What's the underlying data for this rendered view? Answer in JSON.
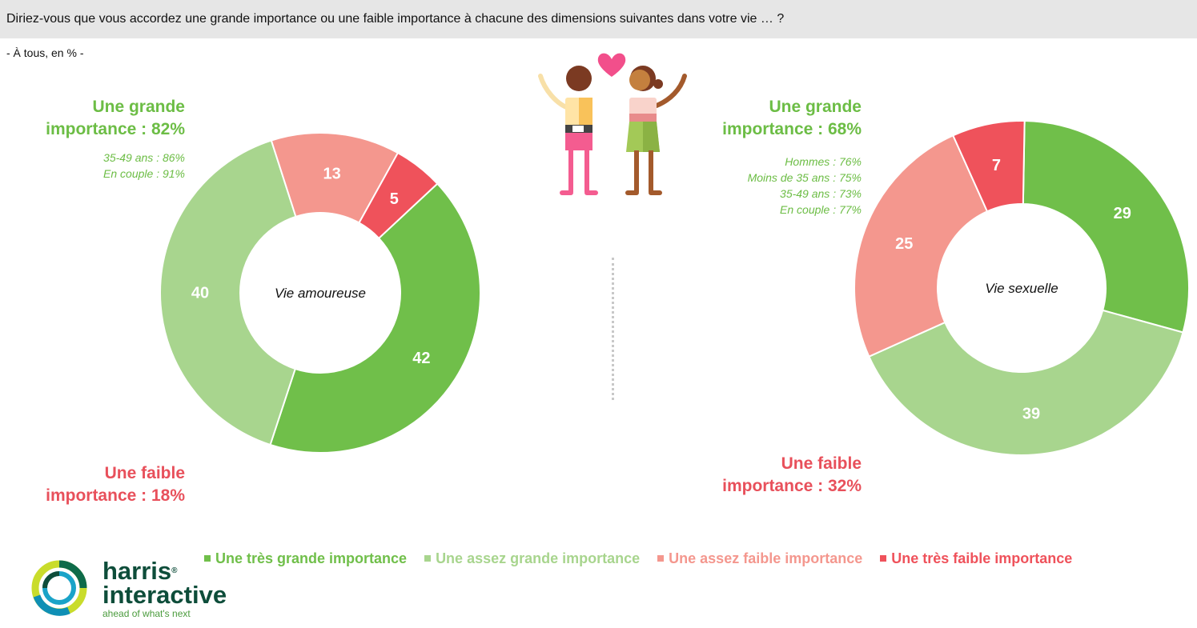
{
  "question": "Diriez-vous que vous accordez une grande importance ou une faible importance à chacune des dimensions suivantes dans votre vie … ?",
  "base": "- À tous, en % -",
  "colors": {
    "tres_grande": "#70bf4a",
    "assez_grande": "#a8d58e",
    "assez_faible": "#f4978e",
    "tres_faible": "#ef525b",
    "summary_green": "#6cbd45",
    "summary_red": "#e8505b"
  },
  "left_panel": {
    "high_summary_line1": "Une grande",
    "high_summary_line2": "importance : 82%",
    "subgroups": [
      "35-49 ans : 86%",
      "En couple : 91%"
    ],
    "low_summary_line1": "Une faible",
    "low_summary_line2": "importance : 18%"
  },
  "right_panel": {
    "high_summary_line1": "Une grande",
    "high_summary_line2": "importance : 68%",
    "subgroups": [
      "Hommes : 76%",
      "Moins de 35 ans : 75%",
      "35-49 ans : 73%",
      "En couple : 77%"
    ],
    "low_summary_line1": "Une faible",
    "low_summary_line2": "importance : 32%"
  },
  "legend": [
    {
      "label": "Une très grande importance",
      "color": "#70bf4a"
    },
    {
      "label": "Une assez grande importance",
      "color": "#a8d58e"
    },
    {
      "label": "Une assez faible importance",
      "color": "#f4978e"
    },
    {
      "label": "Une très faible importance",
      "color": "#ef525b"
    }
  ],
  "logo": {
    "word1": "harris",
    "tm": "®",
    "word2": "interactive",
    "tagline": "ahead of what's next"
  },
  "chart_data": [
    {
      "type": "pie",
      "center_label": "Vie amoureuse",
      "categories": [
        "Une très grande importance",
        "Une assez grande importance",
        "Une assez faible importance",
        "Une très faible importance"
      ],
      "values": [
        42,
        40,
        13,
        5
      ],
      "colors": [
        "#70bf4a",
        "#a8d58e",
        "#f4978e",
        "#ef525b"
      ]
    },
    {
      "type": "pie",
      "center_label": "Vie sexuelle",
      "categories": [
        "Une très grande importance",
        "Une assez grande importance",
        "Une assez faible importance",
        "Une très faible importance"
      ],
      "values": [
        29,
        39,
        25,
        7
      ],
      "colors": [
        "#70bf4a",
        "#a8d58e",
        "#f4978e",
        "#ef525b"
      ]
    }
  ]
}
